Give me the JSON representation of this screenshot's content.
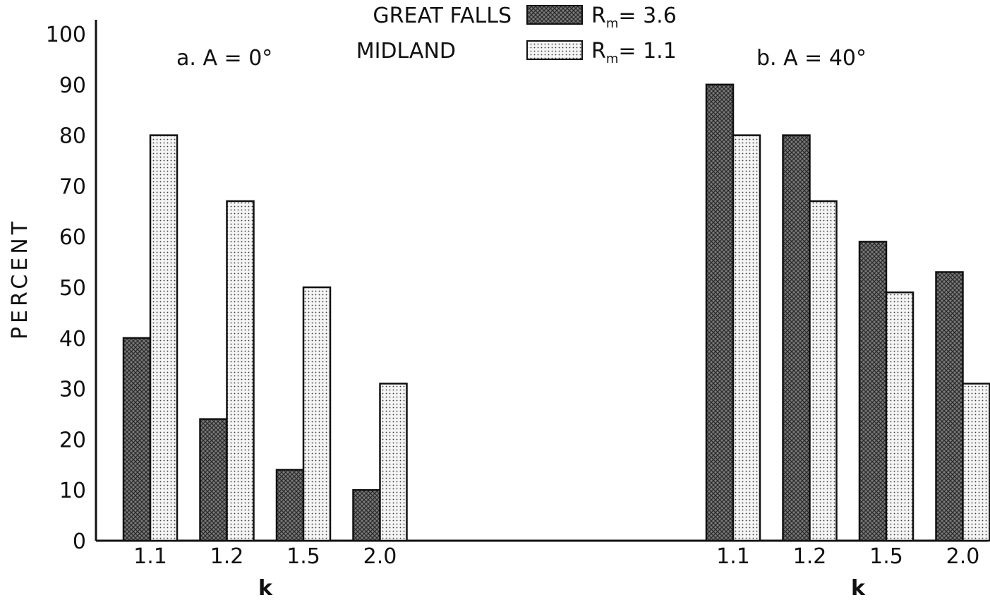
{
  "chart_data": {
    "type": "bar",
    "ylabel": "PERCENT",
    "ylim": [
      0,
      100
    ],
    "yticks": [
      0,
      10,
      20,
      30,
      40,
      50,
      60,
      70,
      80,
      90,
      100
    ],
    "legend": {
      "placement": "top-center",
      "entries": [
        {
          "name": "GREAT FALLS",
          "note": "R",
          "sub": "m",
          "value": "= 3.6",
          "pattern": "crosshatch"
        },
        {
          "name": "MIDLAND",
          "note": "R",
          "sub": "m",
          "value": "= 1.1",
          "pattern": "dots"
        }
      ]
    },
    "panels": [
      {
        "title": "a.  A = 0°",
        "xlabel": "k",
        "categories": [
          "1.1",
          "1.2",
          "1.5",
          "2.0"
        ],
        "series": [
          {
            "name": "GREAT FALLS",
            "values": [
              40,
              24,
              14,
              10
            ]
          },
          {
            "name": "MIDLAND",
            "values": [
              80,
              67,
              50,
              31
            ]
          }
        ]
      },
      {
        "title": "b.  A = 40°",
        "xlabel": "k",
        "categories": [
          "1.1",
          "1.2",
          "1.5",
          "2.0"
        ],
        "series": [
          {
            "name": "GREAT FALLS",
            "values": [
              90,
              80,
              59,
              53
            ]
          },
          {
            "name": "MIDLAND",
            "values": [
              80,
              67,
              49,
              31
            ]
          }
        ]
      }
    ],
    "grid": false
  }
}
